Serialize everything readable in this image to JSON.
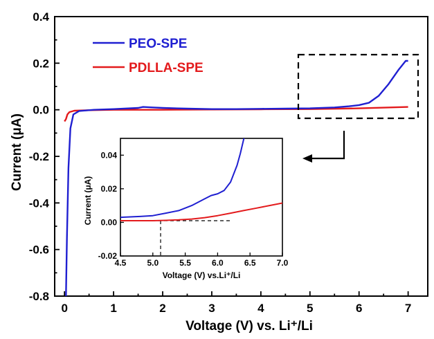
{
  "chart_data": [
    {
      "type": "line",
      "xlabel": "Voltage (V) vs. Li⁺/Li",
      "ylabel": "Current (μA)",
      "xlim": [
        -0.2,
        7.4
      ],
      "ylim": [
        -0.8,
        0.4
      ],
      "xticks": [
        "0",
        "1",
        "2",
        "3",
        "4",
        "5",
        "6",
        "7"
      ],
      "yticks": [
        "0.4",
        "0.2",
        "0.0",
        "-0.2",
        "-0.4",
        "-0.6",
        "-0.8"
      ],
      "legend_position": "top-left",
      "series": [
        {
          "name": "PEO-SPE",
          "color": "#1f1fd1",
          "x": [
            0.03,
            0.05,
            0.08,
            0.12,
            0.18,
            0.3,
            0.6,
            1.0,
            1.5,
            1.6,
            1.8,
            2.0,
            2.5,
            3.0,
            3.5,
            4.0,
            4.5,
            5.0,
            5.5,
            5.8,
            6.0,
            6.2,
            6.4,
            6.6,
            6.8,
            6.95,
            7.0
          ],
          "y": [
            -0.8,
            -0.55,
            -0.25,
            -0.08,
            -0.02,
            -0.005,
            0.0,
            0.003,
            0.008,
            0.012,
            0.01,
            0.008,
            0.005,
            0.003,
            0.003,
            0.004,
            0.005,
            0.006,
            0.01,
            0.015,
            0.02,
            0.03,
            0.06,
            0.11,
            0.17,
            0.21,
            0.21
          ]
        },
        {
          "name": "PDLLA-SPE",
          "color": "#e31a1c",
          "x": [
            0.0,
            0.03,
            0.06,
            0.1,
            0.2,
            0.5,
            1.0,
            2.0,
            3.0,
            4.0,
            5.0,
            6.0,
            6.5,
            7.0
          ],
          "y": [
            -0.05,
            -0.04,
            -0.02,
            -0.01,
            -0.004,
            -0.002,
            0.0,
            0.0,
            0.001,
            0.002,
            0.003,
            0.006,
            0.009,
            0.012
          ]
        }
      ]
    },
    {
      "type": "line",
      "xlabel": "Voltage (V) vs.Li⁺/Li",
      "ylabel": "Current (μA)",
      "xlim": [
        4.5,
        7.0
      ],
      "ylim": [
        -0.02,
        0.05
      ],
      "xticks": [
        "4.5",
        "5.0",
        "5.5",
        "6.0",
        "6.5",
        "7.0"
      ],
      "yticks": [
        "0.04",
        "0.02",
        "0.00",
        "-0.02"
      ],
      "reference_lines": {
        "horizontal_y": 0.001,
        "vertical_x": 5.12
      },
      "series": [
        {
          "name": "PEO-SPE",
          "color": "#1f1fd1",
          "x": [
            4.5,
            4.8,
            5.0,
            5.2,
            5.4,
            5.6,
            5.8,
            5.9,
            6.0,
            6.1,
            6.2,
            6.3,
            6.35,
            6.4,
            6.42
          ],
          "y": [
            0.003,
            0.0035,
            0.004,
            0.0055,
            0.007,
            0.01,
            0.014,
            0.016,
            0.017,
            0.019,
            0.024,
            0.034,
            0.041,
            0.049,
            0.052
          ]
        },
        {
          "name": "PDLLA-SPE",
          "color": "#e31a1c",
          "x": [
            4.5,
            4.8,
            5.0,
            5.2,
            5.4,
            5.6,
            5.8,
            6.0,
            6.2,
            6.4,
            6.6,
            6.8,
            7.0
          ],
          "y": [
            0.001,
            0.001,
            0.001,
            0.0012,
            0.0015,
            0.002,
            0.0028,
            0.004,
            0.0055,
            0.007,
            0.0085,
            0.01,
            0.0115
          ]
        }
      ]
    }
  ]
}
